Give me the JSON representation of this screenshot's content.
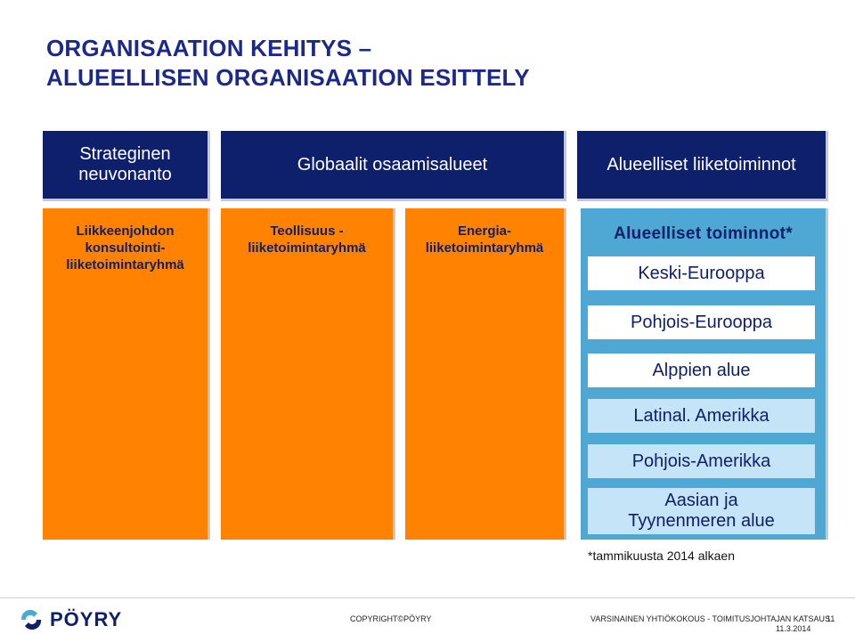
{
  "title": {
    "line1": "ORGANISAATION KEHITYS –",
    "line2": "ALUEELLISEN ORGANISAATION ESITTELY"
  },
  "headers": {
    "strategic": [
      "Strateginen",
      "neuvonanto"
    ],
    "global": "Globaalit osaamisalueet",
    "regional": "Alueelliset liiketoiminnot"
  },
  "columns": {
    "management": [
      "Liikkeenjohdon",
      "konsultointi-",
      "liiketoimintaryhmä"
    ],
    "industry": [
      "Teollisuus -",
      "liiketoimintaryhmä"
    ],
    "energy": [
      "Energia-",
      "liiketoimintaryhmä"
    ]
  },
  "regional_ops": {
    "title": "Alueelliset toiminnot*",
    "regions": [
      "Keski-Eurooppa",
      "Pohjois-Eurooppa",
      "Alppien alue",
      "Latinal. Amerikka",
      "Pohjois-Amerikka"
    ],
    "asia": [
      "Aasian ja",
      "Tyynenmeren alue"
    ]
  },
  "footnote": "*tammikuusta 2014 alkaen",
  "footer": {
    "logo": "PÖYRY",
    "copyright": "COPYRIGHT©PÖYRY",
    "meeting": "VARSINAINEN YHTIÖKOKOUS - TOIMITUSJOHTAJAN KATSAUS",
    "date": "11.3.2014",
    "page": "11"
  },
  "colors": {
    "navy": "#0e1f6b",
    "orange": "#ff8200",
    "blue": "#4fa7d3",
    "light_blue": "#c6e4f7"
  }
}
